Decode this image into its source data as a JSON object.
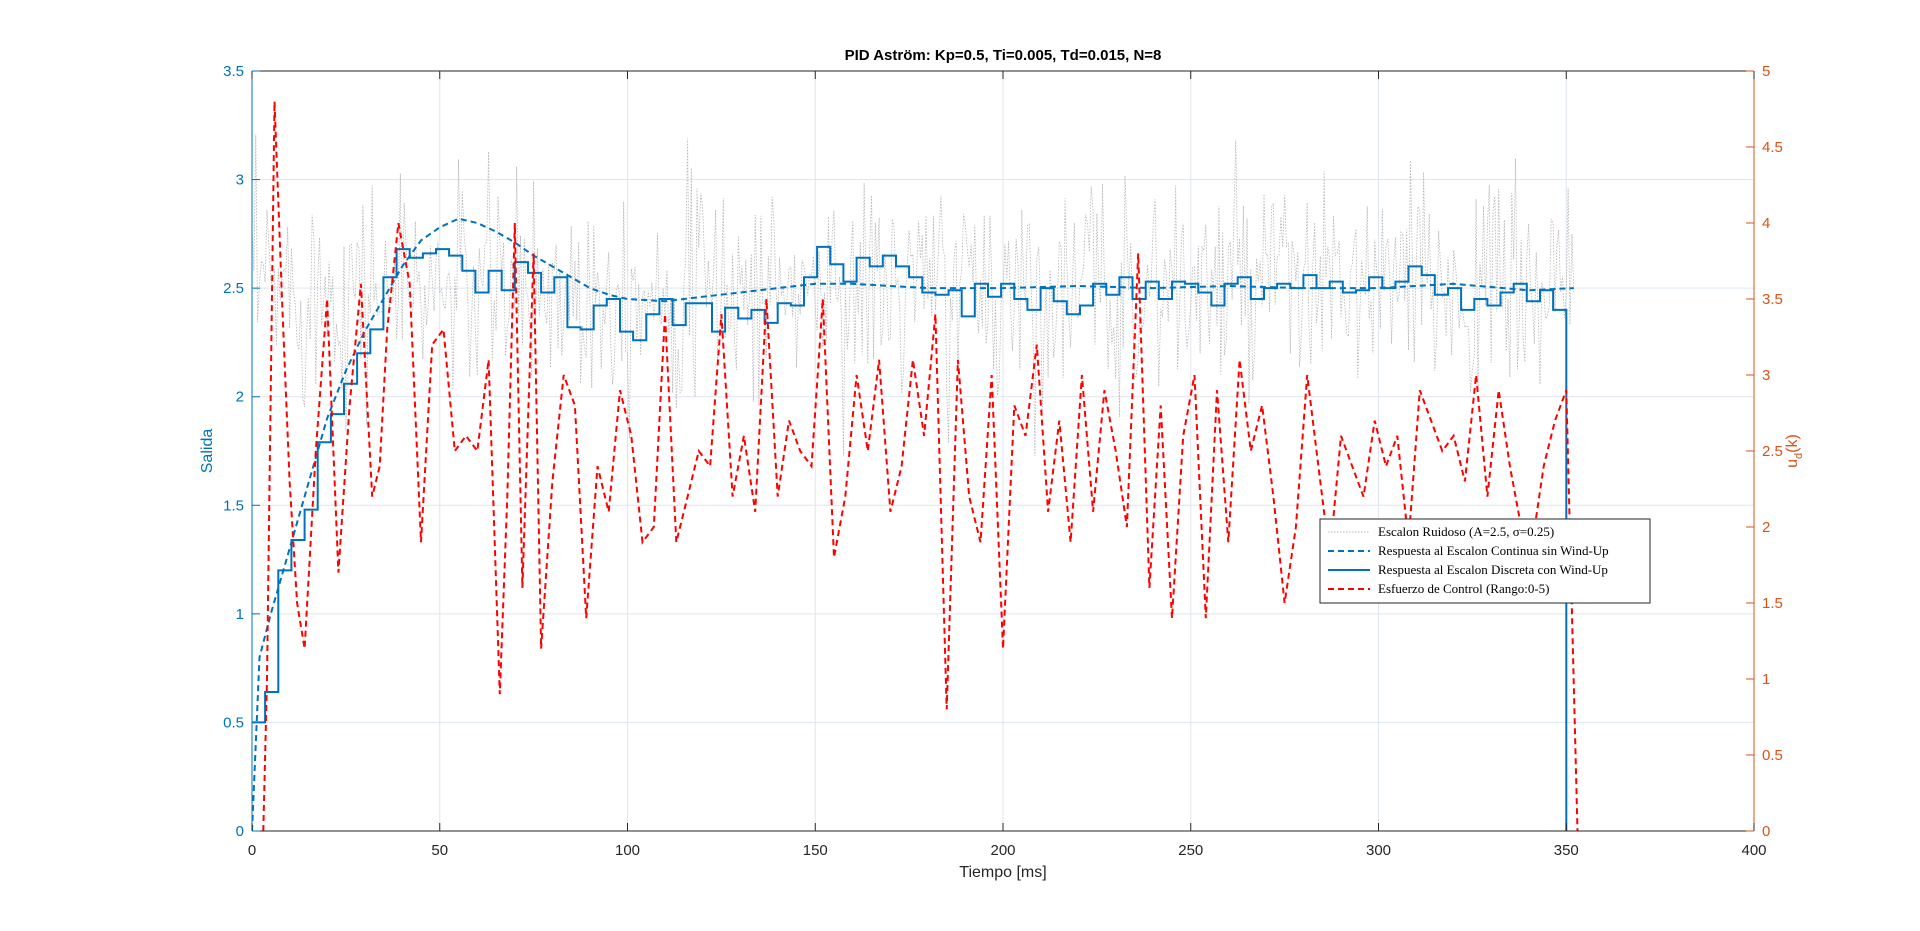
{
  "chart_data": {
    "type": "line",
    "title": "PID Aström: Kp=0.5, Ti=0.005, Td=0.015, N=8",
    "xlabel": "Tiempo [ms]",
    "ylabel_left": "Salida",
    "ylabel_right_base": "u",
    "ylabel_right_sub": "d",
    "ylabel_right_suffix": "(k)",
    "xlim": [
      0,
      400
    ],
    "ylim_left": [
      0,
      3.5
    ],
    "ylim_right": [
      0,
      5
    ],
    "xticks": [
      "0",
      "50",
      "100",
      "150",
      "200",
      "250",
      "300",
      "350",
      "400"
    ],
    "yticks_left": [
      "0",
      "0.5",
      "1",
      "1.5",
      "2",
      "2.5",
      "3",
      "3.5"
    ],
    "yticks_right": [
      "0",
      "0.5",
      "1",
      "1.5",
      "2",
      "2.5",
      "3",
      "3.5",
      "4",
      "4.5",
      "5"
    ],
    "grid": true,
    "legend_position": "lower-right",
    "colors": {
      "noisy": "#b4b4b4",
      "continuous": "#0072bd",
      "discrete": "#0072bd",
      "control": "#ff0000",
      "left_axis": "#0072bd",
      "right_axis": "#d95319",
      "grid": "#dfe6ee"
    },
    "series": [
      {
        "name": "Escalon Ruidoso (A=2.5, σ=0.25)",
        "axis": "left",
        "style": "dotted",
        "noise_mean": 2.5,
        "noise_sigma": 0.25,
        "x_range": [
          0,
          352
        ]
      },
      {
        "name": "Respuesta al Escalon Continua sin Wind-Up",
        "axis": "left",
        "style": "dashed",
        "x": [
          0,
          2,
          5,
          10,
          15,
          20,
          25,
          30,
          35,
          40,
          45,
          50,
          55,
          60,
          65,
          70,
          75,
          80,
          85,
          90,
          95,
          100,
          110,
          120,
          130,
          140,
          150,
          160,
          170,
          180,
          190,
          200,
          220,
          240,
          260,
          280,
          300,
          320,
          340,
          352
        ],
        "y": [
          0,
          0.8,
          1.0,
          1.3,
          1.6,
          1.9,
          2.12,
          2.3,
          2.45,
          2.6,
          2.72,
          2.78,
          2.82,
          2.8,
          2.76,
          2.71,
          2.65,
          2.6,
          2.55,
          2.5,
          2.47,
          2.45,
          2.44,
          2.46,
          2.48,
          2.5,
          2.52,
          2.52,
          2.51,
          2.5,
          2.5,
          2.5,
          2.51,
          2.5,
          2.51,
          2.5,
          2.5,
          2.52,
          2.49,
          2.5
        ]
      },
      {
        "name": "Respuesta al Escalon Discreta con Wind-Up",
        "axis": "left",
        "style": "solid-stairs",
        "x": [
          0,
          3.5,
          7,
          10.5,
          14,
          17.5,
          21,
          24.5,
          28,
          31.5,
          35,
          38.5,
          42,
          45.5,
          49,
          52.5,
          56,
          59.5,
          63,
          66.5,
          70,
          73.5,
          77,
          80.5,
          84,
          87.5,
          91,
          94.5,
          98,
          101.5,
          105,
          108.5,
          112,
          115.5,
          119,
          122.5,
          126,
          129.5,
          133,
          136.5,
          140,
          143.5,
          147,
          150.5,
          154,
          157.5,
          161,
          164.5,
          168,
          171.5,
          175,
          178.5,
          182,
          185.5,
          189,
          192.5,
          196,
          199.5,
          203,
          206.5,
          210,
          213.5,
          217,
          220.5,
          224,
          227.5,
          231,
          234.5,
          238,
          241.5,
          245,
          248.5,
          252,
          255.5,
          259,
          262.5,
          266,
          269.5,
          273,
          276.5,
          280,
          283.5,
          287,
          290.5,
          294,
          297.5,
          301,
          304.5,
          308,
          311.5,
          315,
          318.5,
          322,
          325.5,
          329,
          332.5,
          336,
          339.5,
          343,
          346.5,
          350
        ],
        "y": [
          0.5,
          0.64,
          1.2,
          1.34,
          1.48,
          1.79,
          1.92,
          2.06,
          2.2,
          2.31,
          2.55,
          2.68,
          2.64,
          2.66,
          2.68,
          2.65,
          2.58,
          2.48,
          2.58,
          2.49,
          2.62,
          2.57,
          2.48,
          2.55,
          2.32,
          2.31,
          2.42,
          2.45,
          2.3,
          2.26,
          2.38,
          2.45,
          2.33,
          2.43,
          2.43,
          2.3,
          2.41,
          2.36,
          2.4,
          2.34,
          2.43,
          2.42,
          2.55,
          2.69,
          2.61,
          2.53,
          2.64,
          2.6,
          2.65,
          2.6,
          2.55,
          2.48,
          2.47,
          2.49,
          2.37,
          2.52,
          2.46,
          2.52,
          2.45,
          2.4,
          2.5,
          2.44,
          2.38,
          2.42,
          2.52,
          2.47,
          2.55,
          2.45,
          2.53,
          2.45,
          2.53,
          2.52,
          2.48,
          2.42,
          2.52,
          2.55,
          2.45,
          2.5,
          2.52,
          2.5,
          2.56,
          2.5,
          2.53,
          2.48,
          2.49,
          2.55,
          2.5,
          2.53,
          2.6,
          2.56,
          2.47,
          2.5,
          2.4,
          2.45,
          2.42,
          2.48,
          2.52,
          2.44,
          2.49,
          2.4,
          0
        ]
      },
      {
        "name": "Esfuerzo de Control (Rango:0-5)",
        "axis": "right",
        "style": "dashed",
        "x": [
          3,
          4,
          6,
          8,
          10,
          12,
          14,
          17,
          20,
          23,
          26,
          29,
          32,
          34,
          36,
          39,
          42,
          45,
          48,
          51,
          54,
          57,
          60,
          63,
          66,
          68,
          70,
          72,
          75,
          77,
          80,
          83,
          86,
          89,
          92,
          95,
          98,
          101,
          104,
          107,
          110,
          113,
          116,
          119,
          122,
          125,
          128,
          131,
          134,
          137,
          140,
          143,
          146,
          149,
          152,
          155,
          158,
          161,
          164,
          167,
          170,
          173,
          176,
          179,
          182,
          185,
          188,
          191,
          194,
          197,
          200,
          203,
          206,
          209,
          212,
          215,
          218,
          221,
          224,
          227,
          230,
          233,
          236,
          239,
          242,
          245,
          248,
          251,
          254,
          257,
          260,
          263,
          266,
          269,
          272,
          275,
          278,
          281,
          284,
          287,
          290,
          293,
          296,
          299,
          302,
          305,
          308,
          311,
          314,
          317,
          320,
          323,
          326,
          329,
          332,
          335,
          338,
          341,
          344,
          347,
          350,
          353
        ],
        "y": [
          0,
          1.0,
          4.8,
          3.5,
          2.3,
          1.5,
          1.2,
          2.5,
          3.5,
          1.7,
          2.8,
          3.6,
          2.2,
          2.4,
          3.3,
          4.0,
          3.6,
          1.9,
          3.2,
          3.3,
          2.5,
          2.6,
          2.5,
          3.1,
          0.9,
          2.2,
          4.0,
          1.6,
          3.8,
          1.2,
          2.3,
          3.0,
          2.8,
          1.4,
          2.4,
          2.1,
          2.9,
          2.6,
          1.9,
          2.0,
          3.4,
          1.9,
          2.2,
          2.5,
          2.4,
          3.4,
          2.2,
          2.6,
          2.1,
          3.5,
          2.2,
          2.7,
          2.5,
          2.4,
          3.5,
          1.8,
          2.2,
          3.0,
          2.5,
          3.1,
          2.1,
          2.4,
          3.1,
          2.6,
          3.4,
          0.8,
          3.1,
          2.2,
          1.9,
          3.0,
          1.2,
          2.8,
          2.6,
          3.2,
          2.1,
          2.7,
          1.9,
          3.0,
          2.1,
          2.9,
          2.5,
          2.0,
          3.8,
          1.6,
          2.8,
          1.4,
          2.6,
          3.0,
          1.4,
          2.9,
          1.9,
          3.1,
          2.5,
          2.8,
          2.2,
          1.5,
          2.0,
          3.0,
          2.4,
          1.8,
          2.6,
          2.4,
          2.2,
          2.7,
          2.4,
          2.6,
          1.9,
          2.9,
          2.7,
          2.5,
          2.6,
          2.3,
          3.0,
          2.2,
          2.9,
          2.4,
          2.0,
          1.9,
          2.4,
          2.7,
          2.9,
          0
        ]
      }
    ]
  }
}
